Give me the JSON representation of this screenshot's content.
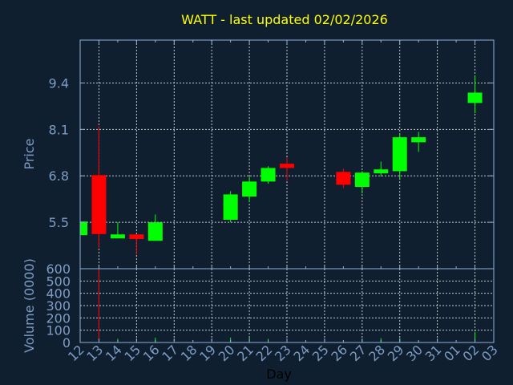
{
  "chart_data": {
    "type": "candlestick",
    "title": "WATT - last updated 02/02/2026",
    "xlabel": "Day",
    "price_panel": {
      "ylabel": "Price",
      "ylim": [
        4.2,
        10.6
      ],
      "yticks": [
        5.5,
        6.8,
        8.1,
        9.4
      ],
      "ytick_labels": [
        "5.5",
        "6.8",
        "8.1",
        "9.4"
      ]
    },
    "volume_panel": {
      "ylabel": "Volume (0000)",
      "ylim": [
        0,
        600
      ],
      "yticks": [
        0,
        100,
        200,
        300,
        400,
        500,
        600
      ],
      "ytick_labels": [
        "0",
        "100",
        "200",
        "300",
        "400",
        "500",
        "600"
      ]
    },
    "x_tick_labels": [
      "12",
      "13",
      "14",
      "15",
      "16",
      "17",
      "18",
      "19",
      "20",
      "21",
      "22",
      "23",
      "24",
      "25",
      "26",
      "27",
      "28",
      "29",
      "30",
      "31",
      "01",
      "02",
      "03"
    ],
    "grid": true,
    "candles": [
      {
        "day": "12",
        "open": 5.14,
        "high": 5.52,
        "low": 5.14,
        "close": 5.52,
        "volume": 0
      },
      {
        "day": "13",
        "open": 6.82,
        "high": 8.19,
        "low": 4.78,
        "close": 5.17,
        "volume": 600
      },
      {
        "day": "14",
        "open": 5.05,
        "high": 5.5,
        "low": 5.05,
        "close": 5.16,
        "volume": 30
      },
      {
        "day": "15",
        "open": 5.16,
        "high": 5.16,
        "low": 4.6,
        "close": 5.03,
        "volume": 20
      },
      {
        "day": "16",
        "open": 4.98,
        "high": 5.72,
        "low": 4.98,
        "close": 5.5,
        "volume": 40
      },
      {
        "day": "20",
        "open": 5.57,
        "high": 6.37,
        "low": 5.5,
        "close": 6.28,
        "volume": 40
      },
      {
        "day": "21",
        "open": 6.22,
        "high": 6.78,
        "low": 6.06,
        "close": 6.64,
        "volume": 40
      },
      {
        "day": "22",
        "open": 6.64,
        "high": 7.07,
        "low": 6.58,
        "close": 7.02,
        "volume": 30
      },
      {
        "day": "23",
        "open": 7.14,
        "high": 7.32,
        "low": 6.67,
        "close": 7.02,
        "volume": 20
      },
      {
        "day": "26",
        "open": 6.91,
        "high": 7.0,
        "low": 6.46,
        "close": 6.55,
        "volume": 10
      },
      {
        "day": "27",
        "open": 6.49,
        "high": 6.93,
        "low": 6.31,
        "close": 6.89,
        "volume": 20
      },
      {
        "day": "28",
        "open": 6.87,
        "high": 7.2,
        "low": 6.78,
        "close": 6.98,
        "volume": 35
      },
      {
        "day": "29",
        "open": 6.93,
        "high": 7.99,
        "low": 6.71,
        "close": 7.88,
        "volume": 35
      },
      {
        "day": "30",
        "open": 7.74,
        "high": 8.03,
        "low": 7.47,
        "close": 7.88,
        "volume": 15
      },
      {
        "day": "02",
        "open": 8.84,
        "high": 9.6,
        "low": 8.55,
        "close": 9.13,
        "volume": 85
      }
    ],
    "colors": {
      "background": "#0f1f2f",
      "up": "#00ff00",
      "down": "#ff0000",
      "axis": "#8fb0d8",
      "grid": "#c8c8c8",
      "title": "#ffff00",
      "tick_text": "#7d9cc4",
      "xlabel": "#000000"
    }
  }
}
